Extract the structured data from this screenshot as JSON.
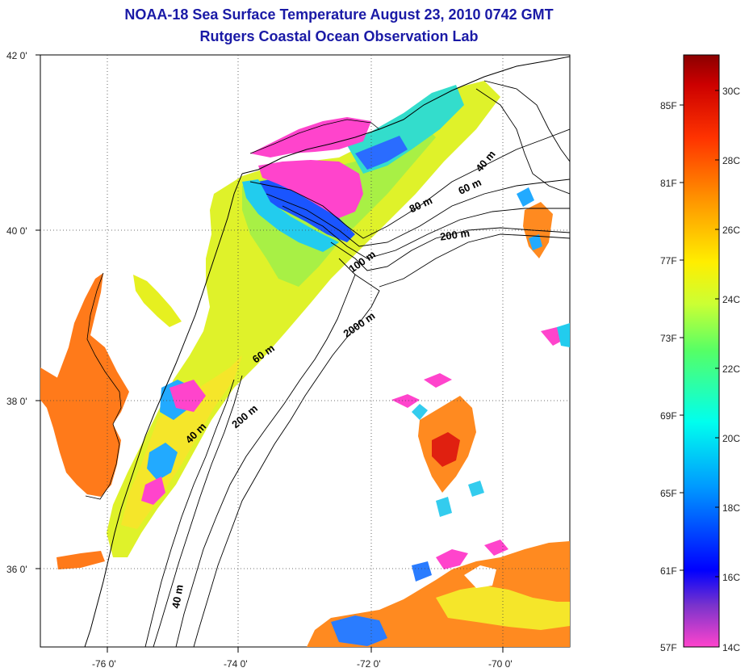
{
  "title": "NOAA-18 Sea Surface Temperature August 23, 2010 0742 GMT",
  "subtitle": "Rutgers Coastal Ocean Observation Lab",
  "map": {
    "lat_ticks": [
      "42 0'",
      "40 0'",
      "38 0'",
      "36 0'"
    ],
    "lon_ticks": [
      "-76 0'",
      "-74 0'",
      "-72 0'",
      "-70 0'"
    ],
    "contour_labels": [
      "40 m",
      "60 m",
      "80 m",
      "200 m",
      "100 m",
      "2000 m",
      "60 m",
      "200 m",
      "40 m",
      "40 m"
    ]
  },
  "colorbar": {
    "fahrenheit": [
      "85F",
      "81F",
      "77F",
      "73F",
      "69F",
      "65F",
      "61F",
      "57F"
    ],
    "celsius": [
      "30C",
      "28C",
      "26C",
      "24C",
      "22C",
      "20C",
      "18C",
      "16C",
      "14C"
    ],
    "colors": [
      "#ff44cc",
      "#7a33cc",
      "#0000ff",
      "#0099ff",
      "#00ffee",
      "#55ff66",
      "#ccff33",
      "#ffee00",
      "#ff9900",
      "#ff3300",
      "#cc0000",
      "#8b0000"
    ]
  }
}
